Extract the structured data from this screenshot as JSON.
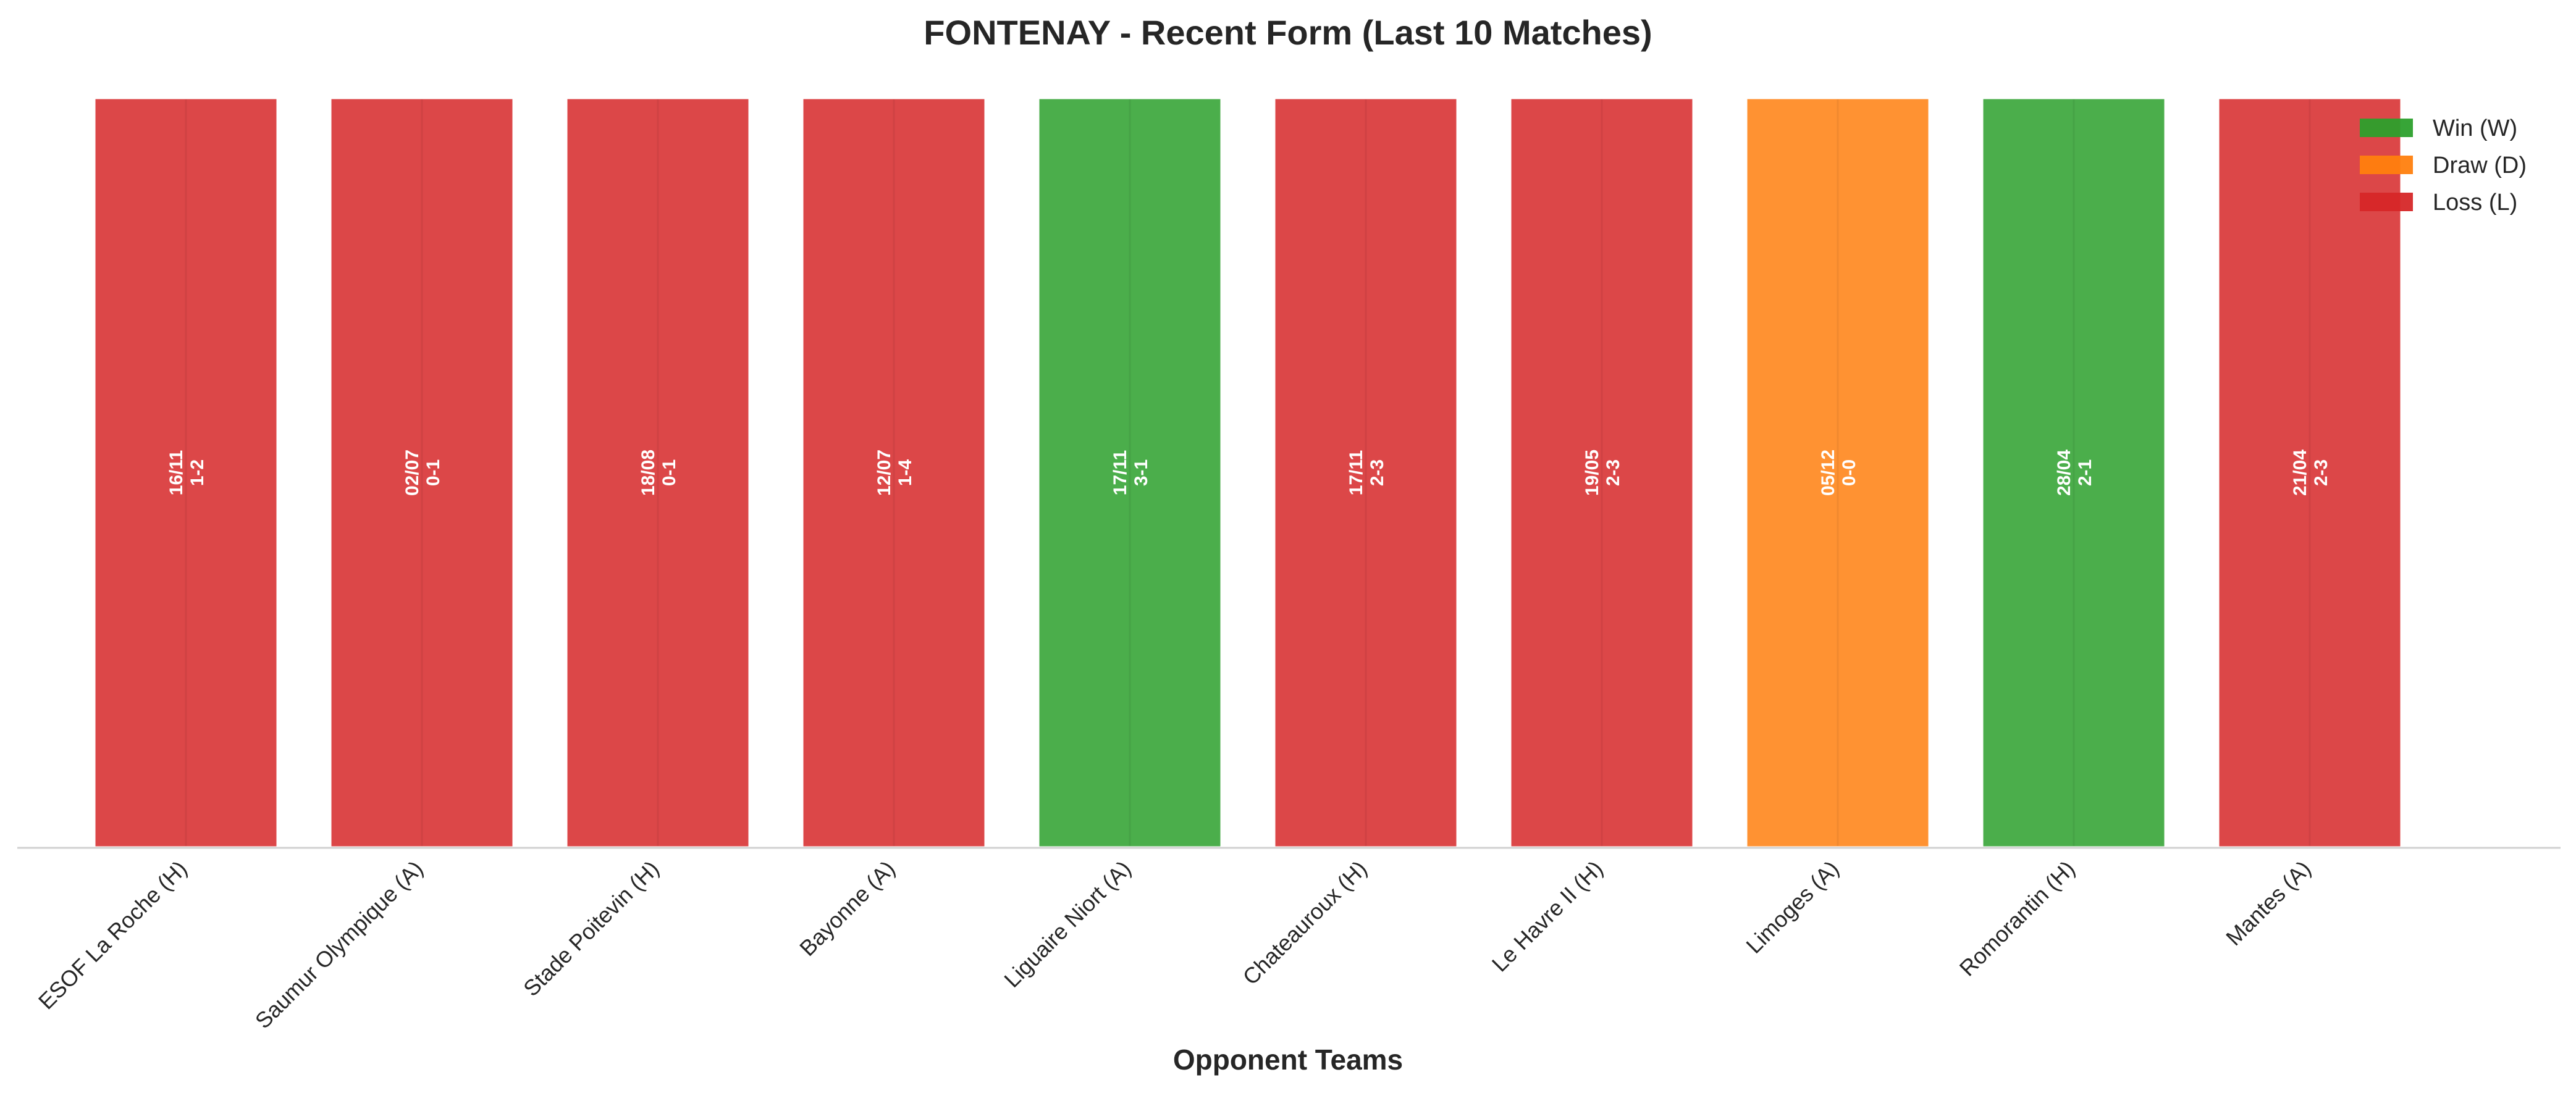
{
  "chart_data": {
    "type": "bar",
    "title": "FONTENAY - Recent Form (Last 10 Matches)",
    "xlabel": "Opponent Teams",
    "ylabel": "",
    "grid": false,
    "legend_position": "top-right",
    "categories": [
      "ESOF La Roche (H)",
      "Saumur Olympique (A)",
      "Stade Poitevin (H)",
      "Bayonne (A)",
      "Liguaire Niort (A)",
      "Chateauroux (H)",
      "Le Havre II (H)",
      "Limoges (A)",
      "Romorantin (H)",
      "Mantes (A)"
    ],
    "values": [
      1,
      1,
      1,
      1,
      1,
      1,
      1,
      1,
      1,
      1
    ],
    "results": [
      "L",
      "L",
      "L",
      "L",
      "W",
      "L",
      "L",
      "D",
      "W",
      "L"
    ],
    "dates": [
      "16/11",
      "02/07",
      "18/08",
      "12/07",
      "17/11",
      "17/11",
      "19/05",
      "05/12",
      "28/04",
      "21/04"
    ],
    "scores": [
      "1-2",
      "0-1",
      "0-1",
      "1-4",
      "3-1",
      "2-3",
      "2-3",
      "0-0",
      "2-1",
      "2-3"
    ],
    "legend": [
      {
        "key": "W",
        "label": "Win (W)",
        "color": "#2ca02c"
      },
      {
        "key": "D",
        "label": "Draw (D)",
        "color": "#ff7f0e"
      },
      {
        "key": "L",
        "label": "Loss (L)",
        "color": "#d62728"
      }
    ]
  }
}
